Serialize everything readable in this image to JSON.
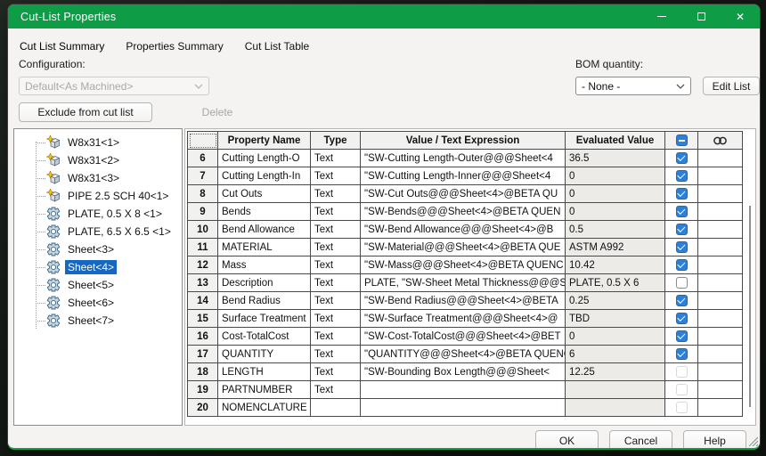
{
  "window": {
    "title": "Cut-List Properties",
    "controls": {
      "minimize": "minimize",
      "maximize": "maximize",
      "close": "close"
    }
  },
  "tabs": [
    "Cut List Summary",
    "Properties Summary",
    "Cut List Table"
  ],
  "configuration": {
    "label": "Configuration:",
    "value": "Default<As Machined>",
    "disabled": true
  },
  "bom": {
    "label": "BOM quantity:",
    "value": "- None -",
    "edit_button": "Edit List"
  },
  "actions": {
    "exclude_button": "Exclude from cut list",
    "delete_button": "Delete"
  },
  "tree": {
    "items": [
      {
        "label": "W8x31<1>",
        "icon": "weldment-solid-icon",
        "selected": false
      },
      {
        "label": "W8x31<2>",
        "icon": "weldment-solid-icon",
        "selected": false
      },
      {
        "label": "W8x31<3>",
        "icon": "weldment-solid-icon",
        "selected": false
      },
      {
        "label": "PIPE 2.5 SCH 40<1>",
        "icon": "weldment-solid-icon",
        "selected": false
      },
      {
        "label": "PLATE, 0.5 X 8 <1>",
        "icon": "sheet-metal-icon",
        "selected": false
      },
      {
        "label": "PLATE, 6.5 X 6.5 <1>",
        "icon": "sheet-metal-icon",
        "selected": false
      },
      {
        "label": "Sheet<3>",
        "icon": "sheet-metal-icon",
        "selected": false
      },
      {
        "label": "Sheet<4>",
        "icon": "sheet-metal-icon",
        "selected": true
      },
      {
        "label": "Sheet<5>",
        "icon": "sheet-metal-icon",
        "selected": false
      },
      {
        "label": "Sheet<6>",
        "icon": "sheet-metal-icon",
        "selected": false
      },
      {
        "label": "Sheet<7>",
        "icon": "sheet-metal-icon",
        "selected": false
      }
    ]
  },
  "table": {
    "headers": {
      "row_num": "",
      "name": "Property Name",
      "type": "Type",
      "value": "Value / Text Expression",
      "evaluated": "Evaluated Value",
      "checkbox_icon": "checkbox-column-icon",
      "link_icon": "link-column-icon"
    },
    "rows": [
      {
        "num": 6,
        "name": "Cutting Length-O",
        "type": "Text",
        "value": "\"SW-Cutting Length-Outer@@@Sheet<4",
        "evaluated": "36.5",
        "checkbox": "checked",
        "editing": false
      },
      {
        "num": 7,
        "name": "Cutting Length-In",
        "type": "Text",
        "value": "\"SW-Cutting Length-Inner@@@Sheet<4",
        "evaluated": "0",
        "checkbox": "checked",
        "editing": false
      },
      {
        "num": 8,
        "name": "Cut Outs",
        "type": "Text",
        "value": "\"SW-Cut Outs@@@Sheet<4>@BETA QU",
        "evaluated": "0",
        "checkbox": "checked",
        "editing": false
      },
      {
        "num": 9,
        "name": "Bends",
        "type": "Text",
        "value": "\"SW-Bends@@@Sheet<4>@BETA QUEN",
        "evaluated": "0",
        "checkbox": "checked",
        "editing": false
      },
      {
        "num": 10,
        "name": "Bend Allowance",
        "type": "Text",
        "value": "\"SW-Bend Allowance@@@Sheet<4>@B",
        "evaluated": "0.5",
        "checkbox": "checked",
        "editing": false
      },
      {
        "num": 11,
        "name": "MATERIAL",
        "type": "Text",
        "value": "\"SW-Material@@@Sheet<4>@BETA QUE",
        "evaluated": "ASTM A992",
        "checkbox": "checked",
        "editing": false
      },
      {
        "num": 12,
        "name": "Mass",
        "type": "Text",
        "value": "\"SW-Mass@@@Sheet<4>@BETA QUENC",
        "evaluated": "10.42",
        "checkbox": "checked",
        "editing": false
      },
      {
        "num": 13,
        "name": "Description",
        "type": "Text",
        "value": "PLATE, \"SW-Sheet Metal Thickness@@@S",
        "evaluated": "PLATE, 0.5 X 6",
        "checkbox": "unchecked",
        "editing": false
      },
      {
        "num": 14,
        "name": "Bend Radius",
        "type": "Text",
        "value": "\"SW-Bend Radius@@@Sheet<4>@BETA",
        "evaluated": "0.25",
        "checkbox": "checked",
        "editing": false
      },
      {
        "num": 15,
        "name": "Surface Treatment",
        "type": "Text",
        "value": "\"SW-Surface Treatment@@@Sheet<4>@",
        "evaluated": "TBD",
        "checkbox": "checked",
        "editing": false
      },
      {
        "num": 16,
        "name": "Cost-TotalCost",
        "type": "Text",
        "value": "\"SW-Cost-TotalCost@@@Sheet<4>@BET",
        "evaluated": "0",
        "checkbox": "checked",
        "editing": false
      },
      {
        "num": 17,
        "name": "QUANTITY",
        "type": "Text",
        "value": "\"QUANTITY@@@Sheet<4>@BETA QUENC",
        "evaluated": "6",
        "checkbox": "checked",
        "editing": false
      },
      {
        "num": 18,
        "name": "LENGTH",
        "type": "Text",
        "value": "\"SW-Bounding Box Length@@@Sheet<",
        "evaluated": "12.25",
        "checkbox": "faded",
        "editing": false
      },
      {
        "num": 19,
        "name": "PARTNUMBER",
        "type": "Text",
        "value": "",
        "evaluated": "",
        "checkbox": "faded",
        "editing": false
      },
      {
        "num": 20,
        "name": "NOMENCLATURE",
        "type": "",
        "value": "",
        "evaluated": "",
        "checkbox": "faded",
        "editing": true
      }
    ]
  },
  "footer": {
    "ok": "OK",
    "cancel": "Cancel",
    "help": "Help"
  },
  "colors": {
    "titlebar_green": "#0e9c47",
    "selection_blue": "#1567c2",
    "checkbox_blue": "#2e7fd6",
    "grid_line": "#4a4a4a"
  }
}
